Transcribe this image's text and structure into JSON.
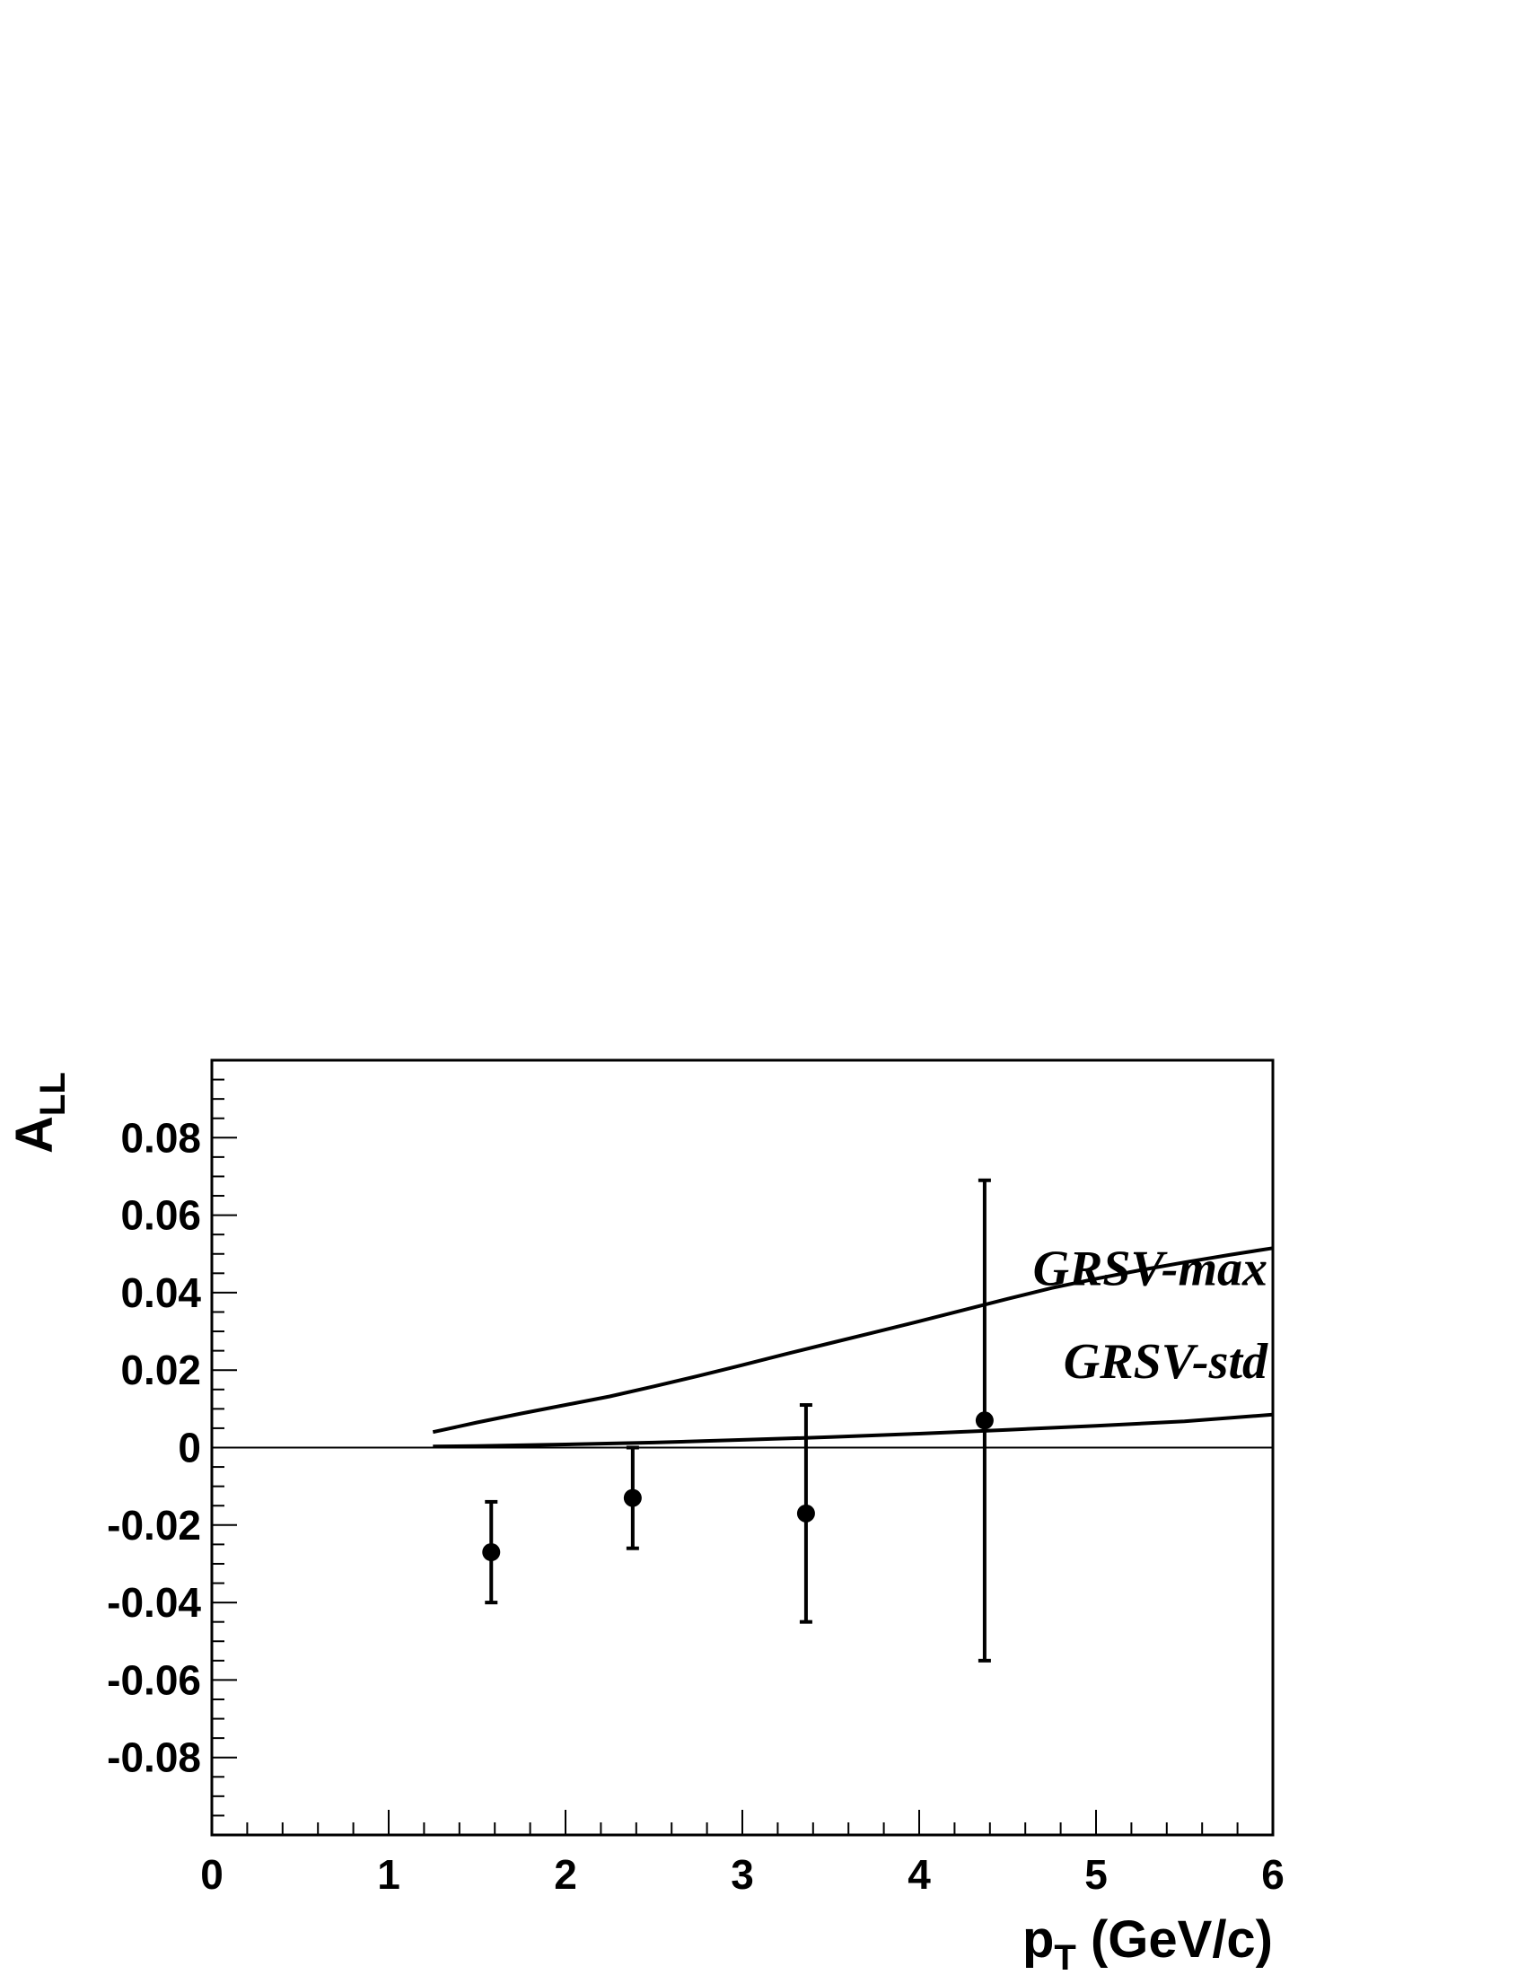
{
  "chart_data": {
    "type": "scatter",
    "title": "",
    "xlabel": {
      "main": "p",
      "sub": "T",
      "rest": " (GeV/c)"
    },
    "ylabel": {
      "main": "A",
      "sub": "LL"
    },
    "xlim": [
      0,
      6
    ],
    "ylim": [
      -0.1,
      0.1
    ],
    "x_ticks": [
      0,
      1,
      2,
      3,
      4,
      5,
      6
    ],
    "x_tick_labels": [
      "0",
      "1",
      "2",
      "3",
      "4",
      "5",
      "6"
    ],
    "y_ticks": [
      -0.08,
      -0.06,
      -0.04,
      -0.02,
      0,
      0.02,
      0.04,
      0.06,
      0.08
    ],
    "y_tick_labels": [
      "-0.08",
      "-0.06",
      "-0.04",
      "-0.02",
      "0",
      "0.02",
      "0.04",
      "0.06",
      "0.08"
    ],
    "grid": false,
    "zero_line": true,
    "data_points": [
      {
        "x": 1.58,
        "y": -0.027,
        "err_low": -0.04,
        "err_high": -0.014
      },
      {
        "x": 2.38,
        "y": -0.013,
        "err_low": -0.026,
        "err_high": 0.0
      },
      {
        "x": 3.36,
        "y": -0.017,
        "err_low": -0.045,
        "err_high": 0.011
      },
      {
        "x": 4.37,
        "y": 0.007,
        "err_low": -0.055,
        "err_high": 0.069
      }
    ],
    "curves": [
      {
        "name": "GRSV-max",
        "x": [
          1.25,
          1.5,
          1.75,
          2.0,
          2.25,
          2.5,
          2.75,
          3.0,
          3.25,
          3.5,
          3.75,
          4.0,
          4.25,
          4.5,
          4.75,
          5.0,
          5.25,
          5.5,
          5.75,
          6.0
        ],
        "y": [
          0.004,
          0.0065,
          0.0088,
          0.011,
          0.0132,
          0.0158,
          0.0185,
          0.0213,
          0.0242,
          0.027,
          0.0298,
          0.0326,
          0.0355,
          0.0384,
          0.0412,
          0.0436,
          0.0458,
          0.0478,
          0.0497,
          0.0515
        ]
      },
      {
        "name": "GRSV-std",
        "x": [
          1.25,
          1.5,
          2.0,
          2.5,
          3.0,
          3.5,
          4.0,
          4.5,
          5.0,
          5.5,
          6.0
        ],
        "y": [
          0.0003,
          0.0004,
          0.0008,
          0.0013,
          0.002,
          0.0027,
          0.0036,
          0.0046,
          0.0056,
          0.0068,
          0.0085
        ]
      }
    ]
  }
}
